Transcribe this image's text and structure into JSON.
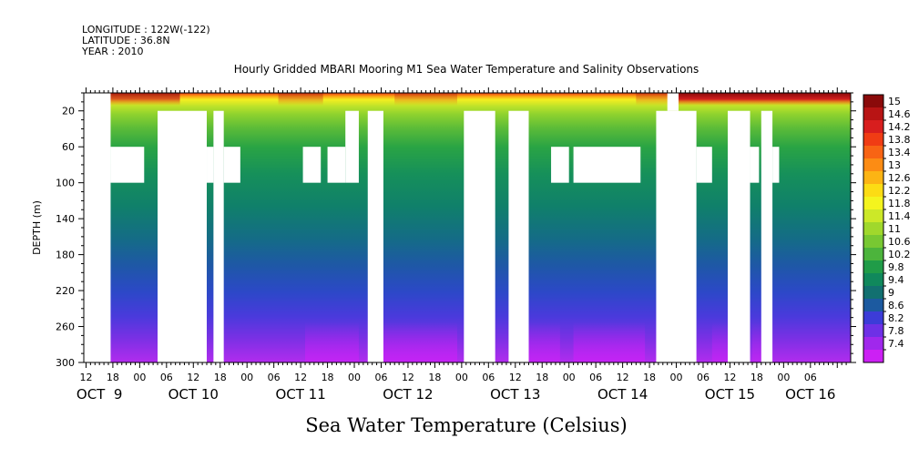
{
  "header": {
    "longitude": "LONGITUDE : 122W(-122)",
    "latitude": "LATITUDE : 36.8N",
    "year": "YEAR : 2010"
  },
  "chart_data": {
    "type": "heatmap",
    "title": "Hourly Gridded MBARI Mooring M1 Sea Water Temperature and Salinity Observations",
    "xlabel": "",
    "ylabel": "DEPTH (m)",
    "caption": "Sea Water Temperature (Celsius)",
    "x_hours_range": [
      -3.5,
      168
    ],
    "y_range_m": [
      0,
      300
    ],
    "y_ticks": [
      20,
      60,
      100,
      140,
      180,
      220,
      260,
      300
    ],
    "x_hour_ticks": [
      {
        "h": -3,
        "label": "12"
      },
      {
        "h": 3,
        "label": "18"
      },
      {
        "h": 9,
        "label": "00"
      },
      {
        "h": 15,
        "label": "06"
      },
      {
        "h": 21,
        "label": "12"
      },
      {
        "h": 27,
        "label": "18"
      },
      {
        "h": 33,
        "label": "00"
      },
      {
        "h": 39,
        "label": "06"
      },
      {
        "h": 45,
        "label": "12"
      },
      {
        "h": 51,
        "label": "18"
      },
      {
        "h": 57,
        "label": "00"
      },
      {
        "h": 63,
        "label": "06"
      },
      {
        "h": 69,
        "label": "12"
      },
      {
        "h": 75,
        "label": "18"
      },
      {
        "h": 81,
        "label": "00"
      },
      {
        "h": 87,
        "label": "06"
      },
      {
        "h": 93,
        "label": "12"
      },
      {
        "h": 99,
        "label": "18"
      },
      {
        "h": 105,
        "label": "00"
      },
      {
        "h": 111,
        "label": "06"
      },
      {
        "h": 117,
        "label": "12"
      },
      {
        "h": 123,
        "label": "18"
      },
      {
        "h": 129,
        "label": "00"
      },
      {
        "h": 135,
        "label": "06"
      },
      {
        "h": 141,
        "label": "12"
      },
      {
        "h": 147,
        "label": "18"
      },
      {
        "h": 153,
        "label": "00"
      },
      {
        "h": 159,
        "label": "06"
      }
    ],
    "day_labels": [
      {
        "h": 0,
        "label": "OCT  9"
      },
      {
        "h": 21,
        "label": "OCT 10"
      },
      {
        "h": 45,
        "label": "OCT 11"
      },
      {
        "h": 69,
        "label": "OCT 12"
      },
      {
        "h": 93,
        "label": "OCT 13"
      },
      {
        "h": 117,
        "label": "OCT 14"
      },
      {
        "h": 141,
        "label": "OCT 15"
      },
      {
        "h": 159,
        "label": "OCT 16"
      }
    ],
    "colorbar_labels": [
      "15",
      "14.6",
      "14.2",
      "13.8",
      "13.4",
      "13",
      "12.6",
      "12.2",
      "11.8",
      "11.4",
      "11",
      "10.6",
      "10.2",
      "9.8",
      "9.4",
      "9",
      "8.6",
      "8.2",
      "7.8",
      "7.4"
    ],
    "colorbar_colors": [
      "#8a0a0a",
      "#b81414",
      "#d81e1e",
      "#f03c14",
      "#f86414",
      "#fc8c14",
      "#fcb414",
      "#fcdc14",
      "#f4f41e",
      "#cce828",
      "#a0d82c",
      "#78c832",
      "#4cb43c",
      "#209c48",
      "#10885c",
      "#127070",
      "#1c5aa0",
      "#3c3cd8",
      "#6e30e6",
      "#a028ec",
      "#cc20f4"
    ],
    "temperature_profile_mean": [
      {
        "depth": 0,
        "temp": 14.2
      },
      {
        "depth": 10,
        "temp": 12.8
      },
      {
        "depth": 20,
        "temp": 11.4
      },
      {
        "depth": 35,
        "temp": 10.8
      },
      {
        "depth": 60,
        "temp": 10.0
      },
      {
        "depth": 100,
        "temp": 9.6
      },
      {
        "depth": 140,
        "temp": 9.2
      },
      {
        "depth": 180,
        "temp": 8.8
      },
      {
        "depth": 220,
        "temp": 8.4
      },
      {
        "depth": 260,
        "temp": 8.0
      },
      {
        "depth": 300,
        "temp": 7.5
      }
    ],
    "missing_data_regions": [
      {
        "h0": -3.5,
        "h1": 2.5,
        "d0": 0,
        "d1": 300
      },
      {
        "h0": 2.5,
        "h1": 10,
        "d0": 60,
        "d1": 100
      },
      {
        "h0": 13,
        "h1": 24,
        "d0": 20,
        "d1": 300
      },
      {
        "h0": 24,
        "h1": 25.5,
        "d0": 60,
        "d1": 100
      },
      {
        "h0": 25.5,
        "h1": 27.8,
        "d0": 20,
        "d1": 300
      },
      {
        "h0": 27.8,
        "h1": 31.5,
        "d0": 60,
        "d1": 100
      },
      {
        "h0": 45.5,
        "h1": 49.5,
        "d0": 60,
        "d1": 100
      },
      {
        "h0": 51,
        "h1": 55,
        "d0": 60,
        "d1": 100
      },
      {
        "h0": 55,
        "h1": 58,
        "d0": 20,
        "d1": 100
      },
      {
        "h0": 60,
        "h1": 63.5,
        "d0": 20,
        "d1": 300
      },
      {
        "h0": 81.5,
        "h1": 88.5,
        "d0": 20,
        "d1": 300
      },
      {
        "h0": 91.5,
        "h1": 96,
        "d0": 20,
        "d1": 300
      },
      {
        "h0": 101,
        "h1": 105,
        "d0": 60,
        "d1": 100
      },
      {
        "h0": 106,
        "h1": 121,
        "d0": 60,
        "d1": 100
      },
      {
        "h0": 124.5,
        "h1": 133.5,
        "d0": 20,
        "d1": 300
      },
      {
        "h0": 127,
        "h1": 129.5,
        "d0": 0,
        "d1": 20
      },
      {
        "h0": 133.5,
        "h1": 137,
        "d0": 60,
        "d1": 100
      },
      {
        "h0": 140.5,
        "h1": 145.5,
        "d0": 20,
        "d1": 300
      },
      {
        "h0": 145.5,
        "h1": 147.5,
        "d0": 60,
        "d1": 100
      },
      {
        "h0": 148,
        "h1": 150.5,
        "d0": 20,
        "d1": 300
      },
      {
        "h0": 150.5,
        "h1": 152,
        "d0": 60,
        "d1": 100
      }
    ]
  }
}
